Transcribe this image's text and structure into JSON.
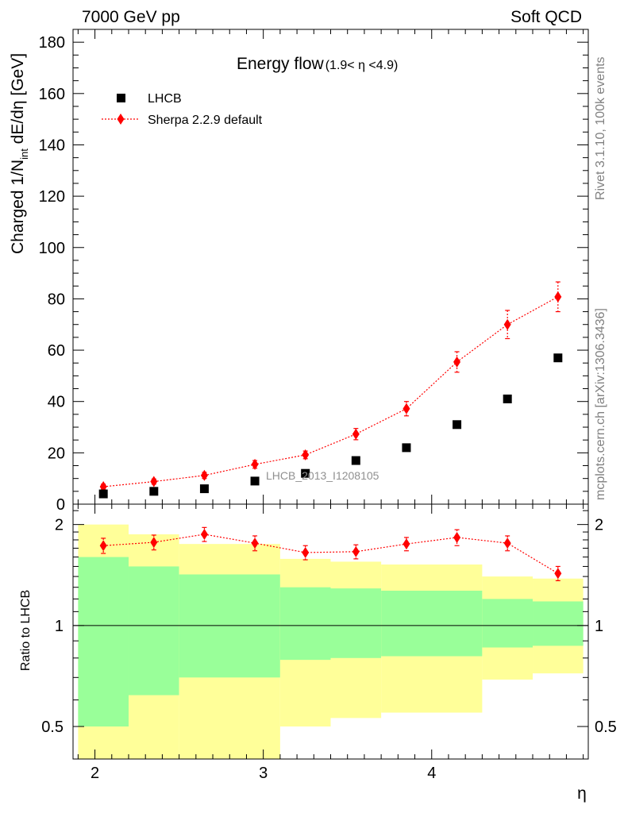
{
  "header": {
    "left": "7000 GeV pp",
    "right": "Soft QCD"
  },
  "side_labels": {
    "rivet": "Rivet 3.1.10,  100k events",
    "mcplots": "mcplots.cern.ch [arXiv:1306.3436]"
  },
  "watermark": "LHCB_2013_I1208105",
  "chart_data": [
    {
      "type": "scatter",
      "title": "Energy flow",
      "title_suffix": "(1.9< η <4.9)",
      "ylabel": "Charged 1/N_int dE/dη [GeV]",
      "ylabel_main": "Charged 1/N",
      "ylabel_sub": "int",
      "ylabel_tail": " dE/dη [GeV]",
      "xlim": [
        1.87,
        4.93
      ],
      "ylim": [
        0,
        185
      ],
      "y_ticks": [
        0,
        20,
        40,
        60,
        80,
        100,
        120,
        140,
        160,
        180
      ],
      "y_tick_labels": [
        "0",
        "20",
        "40",
        "60",
        "80",
        "100",
        "120",
        "140",
        "160",
        "180"
      ],
      "legend_position": "top-left",
      "series": [
        {
          "name": "LHCB",
          "color": "#000000",
          "marker": "square",
          "x": [
            2.05,
            2.35,
            2.65,
            2.95,
            3.25,
            3.55,
            3.85,
            4.15,
            4.45,
            4.75
          ],
          "y": [
            4.0,
            5.0,
            6.0,
            9.0,
            12.0,
            17.0,
            22.0,
            31.0,
            41.0,
            57.0
          ]
        },
        {
          "name": "Sherpa 2.2.9 default",
          "color": "#ff0000",
          "marker": "diamond",
          "line": "dotted",
          "x": [
            2.05,
            2.35,
            2.65,
            2.95,
            3.25,
            3.55,
            3.85,
            4.15,
            4.45,
            4.75
          ],
          "y": [
            6.8,
            8.8,
            11.2,
            15.5,
            19.2,
            27.3,
            37.2,
            55.4,
            70.0,
            80.8
          ],
          "yerr": [
            1.0,
            1.0,
            1.2,
            1.5,
            1.5,
            2.2,
            2.8,
            4.0,
            5.5,
            5.8
          ]
        }
      ]
    },
    {
      "type": "scatter",
      "ylabel": "Ratio to LHCB",
      "xlabel": "η",
      "xlim": [
        1.87,
        4.93
      ],
      "ylim": [
        0.4,
        2.3
      ],
      "y_scale": "log",
      "x_ticks": [
        2,
        3,
        4
      ],
      "x_tick_labels": [
        "2",
        "3",
        "4"
      ],
      "y_ticks": [
        0.5,
        1,
        2
      ],
      "y_tick_labels": [
        "0.5",
        "1",
        "2"
      ],
      "bands": [
        {
          "x0": 1.9,
          "x1": 2.2,
          "y_lo": 0.5,
          "y_hi": 1.6,
          "outer_lo": 0.0,
          "outer_hi": 2.0
        },
        {
          "x0": 2.2,
          "x1": 2.5,
          "y_lo": 0.62,
          "y_hi": 1.5,
          "outer_lo": 0.0,
          "outer_hi": 1.87
        },
        {
          "x0": 2.5,
          "x1": 3.1,
          "y_lo": 0.7,
          "y_hi": 1.42,
          "outer_lo": 0.0,
          "outer_hi": 1.75
        },
        {
          "x0": 3.1,
          "x1": 3.4,
          "y_lo": 0.79,
          "y_hi": 1.3,
          "outer_lo": 0.5,
          "outer_hi": 1.58
        },
        {
          "x0": 3.4,
          "x1": 3.7,
          "y_lo": 0.8,
          "y_hi": 1.29,
          "outer_lo": 0.53,
          "outer_hi": 1.55
        },
        {
          "x0": 3.7,
          "x1": 4.3,
          "y_lo": 0.81,
          "y_hi": 1.27,
          "outer_lo": 0.55,
          "outer_hi": 1.52
        },
        {
          "x0": 4.3,
          "x1": 4.6,
          "y_lo": 0.86,
          "y_hi": 1.2,
          "outer_lo": 0.69,
          "outer_hi": 1.4
        },
        {
          "x0": 4.6,
          "x1": 4.9,
          "y_lo": 0.87,
          "y_hi": 1.18,
          "outer_lo": 0.72,
          "outer_hi": 1.38
        }
      ],
      "series": [
        {
          "name": "Sherpa 2.2.9 default",
          "color": "#ff0000",
          "marker": "diamond",
          "line": "dotted",
          "x": [
            2.05,
            2.35,
            2.65,
            2.95,
            3.25,
            3.55,
            3.85,
            4.15,
            4.45,
            4.75
          ],
          "y": [
            1.73,
            1.77,
            1.87,
            1.76,
            1.65,
            1.66,
            1.75,
            1.83,
            1.76,
            1.43
          ],
          "yerr": [
            0.09,
            0.09,
            0.09,
            0.09,
            0.08,
            0.08,
            0.08,
            0.1,
            0.09,
            0.07
          ]
        }
      ]
    }
  ],
  "colors": {
    "band_inner": "#99ff99",
    "band_outer": "#ffff99",
    "mc": "#ff0000",
    "data": "#000000",
    "side_text": "#808080"
  }
}
